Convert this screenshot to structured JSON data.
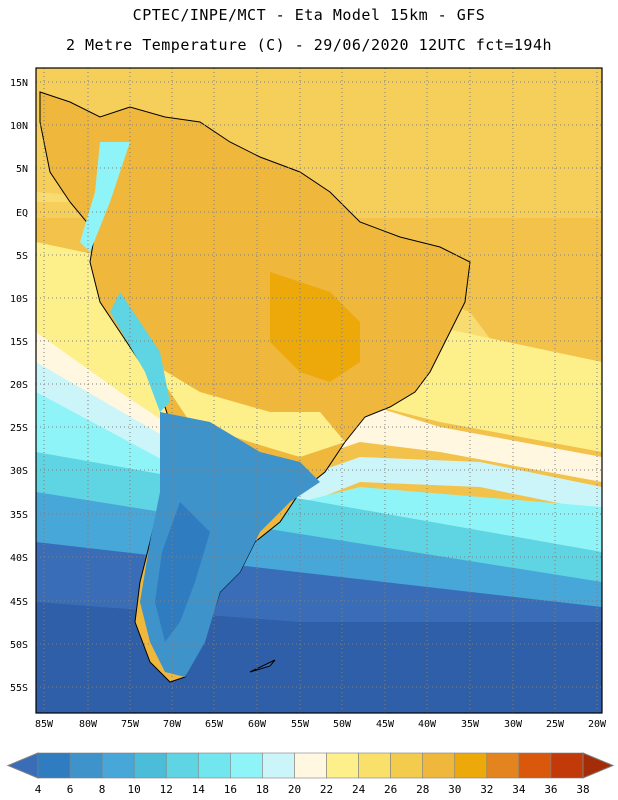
{
  "header": {
    "line1": "CPTEC/INPE/MCT -  Eta Model 15km - GFS",
    "line2": "2 Metre Temperature (C) - 29/06/2020 12UTC fct=194h"
  },
  "map": {
    "lat_labels": [
      "15N",
      "10N",
      "5N",
      "EQ",
      "5S",
      "10S",
      "15S",
      "20S",
      "25S",
      "30S",
      "35S",
      "40S",
      "45S",
      "50S",
      "55S"
    ],
    "lon_labels": [
      "85W",
      "80W",
      "75W",
      "70W",
      "65W",
      "60W",
      "55W",
      "50W",
      "45W",
      "40W",
      "35W",
      "30W",
      "25W",
      "20W"
    ]
  },
  "colorbar": {
    "labels": [
      "4",
      "6",
      "8",
      "10",
      "12",
      "14",
      "16",
      "18",
      "20",
      "22",
      "24",
      "26",
      "28",
      "30",
      "32",
      "34",
      "36",
      "38"
    ],
    "colors": [
      "#3a6db8",
      "#2f7cc0",
      "#3f93cb",
      "#47a7d8",
      "#4cbdd9",
      "#5fd4e2",
      "#72e6ee",
      "#8ff4f7",
      "#ccf5fa",
      "#fff7df",
      "#fdf08a",
      "#f8e06a",
      "#f3cc4e",
      "#efb83c",
      "#eda80a",
      "#e3841f",
      "#d9580c",
      "#c23a0a",
      "#a42d07"
    ]
  }
}
